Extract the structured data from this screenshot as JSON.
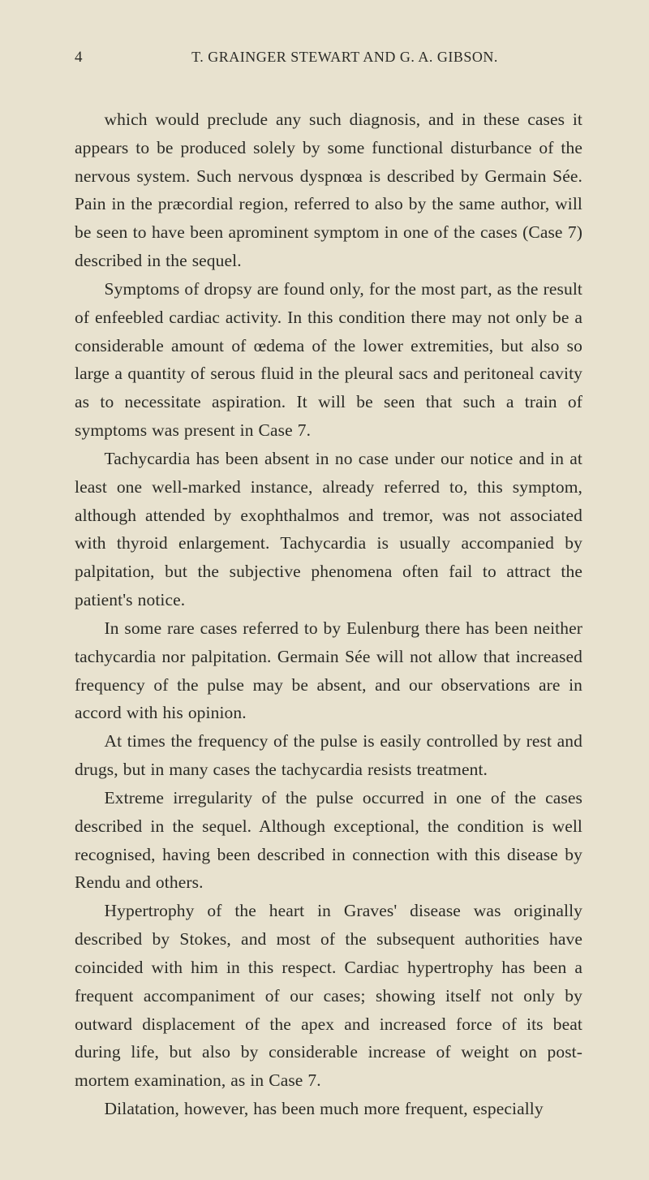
{
  "page": {
    "number": "4",
    "running_head": "T. GRAINGER STEWART AND G. A. GIBSON.",
    "background_color": "#e8e2cf",
    "text_color": "#2b2b26",
    "body_fontsize": 21.5,
    "header_fontsize": 18,
    "pagenum_fontsize": 19,
    "line_height": 1.62,
    "text_indent_em": 1.7
  },
  "paragraphs": [
    "which would preclude any such diagnosis, and in these cases it appears to be produced solely by some functional disturbance of the nervous system. Such nervous dyspnœa is described by Germain Sée. Pain in the præcordial region, referred to also by the same author, will be seen to have been aprominent symptom in one of the cases (Case 7) described in the sequel.",
    "Symptoms of dropsy are found only, for the most part, as the result of enfeebled cardiac activity. In this condition there may not only be a considerable amount of œdema of the lower extremities, but also so large a quantity of serous fluid in the pleural sacs and peritoneal cavity as to necessitate aspiration. It will be seen that such a train of symptoms was present in Case 7.",
    "Tachycardia has been absent in no case under our notice and in at least one well-marked instance, already referred to, this symptom, although attended by exophthalmos and tremor, was not associated with thyroid enlargement. Tachycardia is usually accompanied by palpitation, but the subjective phenomena often fail to attract the patient's notice.",
    "In some rare cases referred to by Eulenburg there has been neither tachycardia nor palpitation. Germain Sée will not allow that increased frequency of the pulse may be absent, and our observations are in accord with his opinion.",
    "At times the frequency of the pulse is easily controlled by rest and drugs, but in many cases the tachycardia resists treatment.",
    "Extreme irregularity of the pulse occurred in one of the cases described in the sequel. Although exceptional, the condition is well recognised, having been described in connection with this disease by Rendu and others.",
    "Hypertrophy of the heart in Graves' disease was originally described by Stokes, and most of the subsequent authorities have coincided with him in this respect. Cardiac hypertrophy has been a frequent accompaniment of our cases; showing itself not only by outward displacement of the apex and increased force of its beat during life, but also by considerable increase of weight on post-mortem examination, as in Case 7.",
    "Dilatation, however, has been much more frequent, especially"
  ]
}
